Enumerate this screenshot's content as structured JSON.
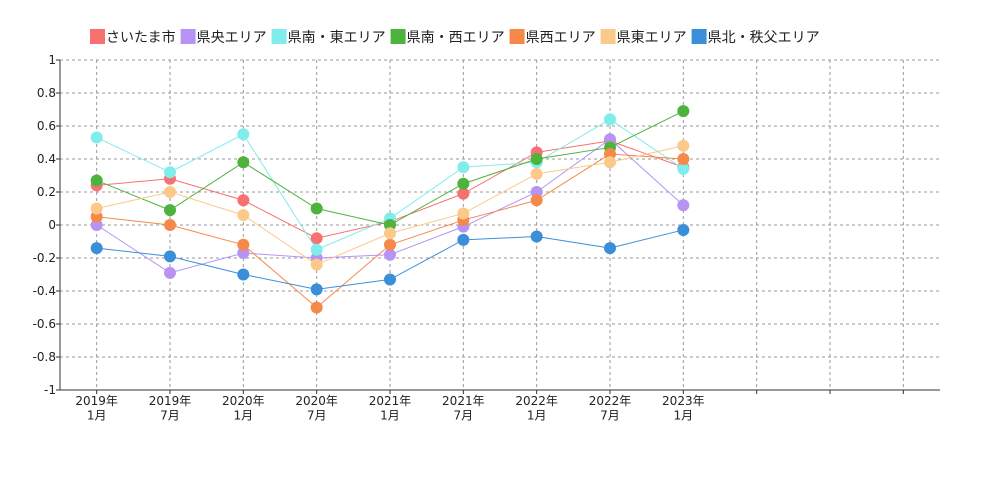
{
  "chart_data": {
    "type": "line",
    "categories": [
      "2019年\n1月",
      "2019年\n7月",
      "2020年\n1月",
      "2020年\n7月",
      "2021年\n1月",
      "2021年\n7月",
      "2022年\n1月",
      "2022年\n7月",
      "2023年\n1月",
      null,
      null,
      null
    ],
    "series": [
      {
        "name": "さいたま市",
        "color": "#f87171",
        "values": [
          0.24,
          0.28,
          0.15,
          -0.08,
          0.02,
          0.19,
          0.44,
          0.51,
          0.35,
          null,
          null,
          null
        ]
      },
      {
        "name": "県央エリア",
        "color": "#b794f4",
        "values": [
          0.0,
          -0.29,
          -0.17,
          -0.2,
          -0.18,
          -0.01,
          0.2,
          0.52,
          0.12,
          null,
          null,
          null
        ]
      },
      {
        "name": "県南・東エリア",
        "color": "#81ecec",
        "values": [
          0.53,
          0.32,
          0.55,
          -0.15,
          0.04,
          0.35,
          0.38,
          0.64,
          0.34,
          null,
          null,
          null
        ]
      },
      {
        "name": "県南・西エリア",
        "color": "#4db33d",
        "values": [
          0.27,
          0.09,
          0.38,
          0.1,
          0.0,
          0.25,
          0.4,
          0.47,
          0.69,
          null,
          null,
          null
        ]
      },
      {
        "name": "県西エリア",
        "color": "#f6894a",
        "values": [
          0.05,
          0.0,
          -0.12,
          -0.5,
          -0.12,
          0.03,
          0.15,
          0.43,
          0.4,
          null,
          null,
          null
        ]
      },
      {
        "name": "県東エリア",
        "color": "#fbc98a",
        "values": [
          0.1,
          0.2,
          0.06,
          -0.24,
          -0.05,
          0.07,
          0.31,
          0.38,
          0.48,
          null,
          null,
          null
        ]
      },
      {
        "name": "県北・秩父エリア",
        "color": "#3b8fd9",
        "values": [
          -0.14,
          -0.19,
          -0.3,
          -0.39,
          -0.33,
          -0.09,
          -0.07,
          -0.14,
          -0.03,
          null,
          null,
          null
        ]
      }
    ],
    "ylim": [
      -1,
      1
    ],
    "yticks": [
      -1,
      -0.8,
      -0.6,
      -0.4,
      -0.2,
      0,
      0.2,
      0.4,
      0.6,
      0.8,
      1
    ],
    "grid": true,
    "legend": "top"
  }
}
